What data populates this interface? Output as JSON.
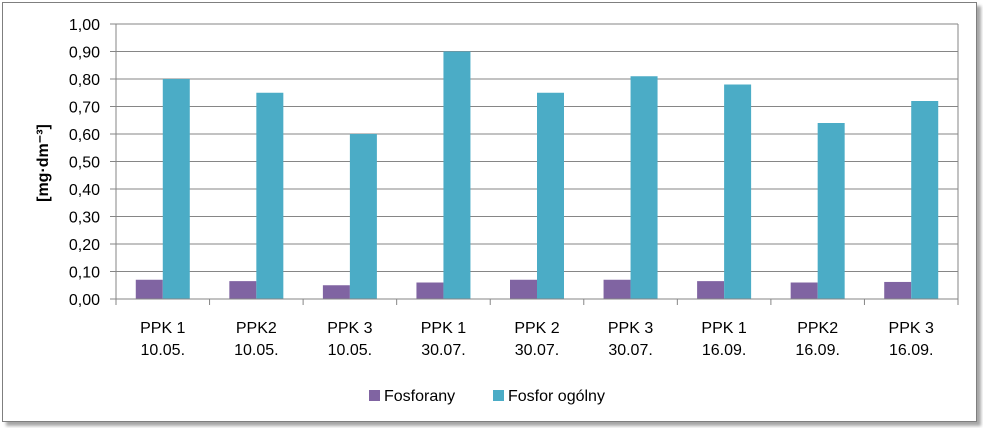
{
  "chart_data": {
    "type": "bar",
    "ylabel": "[mg·dm⁻³]",
    "ylim": [
      0,
      1.0
    ],
    "ytick_step": 0.1,
    "ytick_labels": [
      "0,00",
      "0,10",
      "0,20",
      "0,30",
      "0,40",
      "0,50",
      "0,60",
      "0,70",
      "0,80",
      "0,90",
      "1,00"
    ],
    "grid": true,
    "legend_position": "bottom",
    "categories": [
      [
        "PPK 1",
        "10.05."
      ],
      [
        "PPK2",
        "10.05."
      ],
      [
        "PPK 3",
        "10.05."
      ],
      [
        "PPK 1",
        "30.07."
      ],
      [
        "PPK 2",
        "30.07."
      ],
      [
        "PPK 3",
        "30.07."
      ],
      [
        "PPK 1",
        "16.09."
      ],
      [
        "PPK2",
        "16.09."
      ],
      [
        "PPK 3",
        "16.09."
      ]
    ],
    "series": [
      {
        "name": "Fosforany",
        "color": "#8064a2",
        "values": [
          0.07,
          0.065,
          0.05,
          0.06,
          0.07,
          0.07,
          0.065,
          0.06,
          0.062
        ]
      },
      {
        "name": "Fosfor ogólny",
        "color": "#4bacc6",
        "values": [
          0.8,
          0.75,
          0.6,
          0.9,
          0.75,
          0.81,
          0.78,
          0.64,
          0.72
        ]
      }
    ]
  }
}
